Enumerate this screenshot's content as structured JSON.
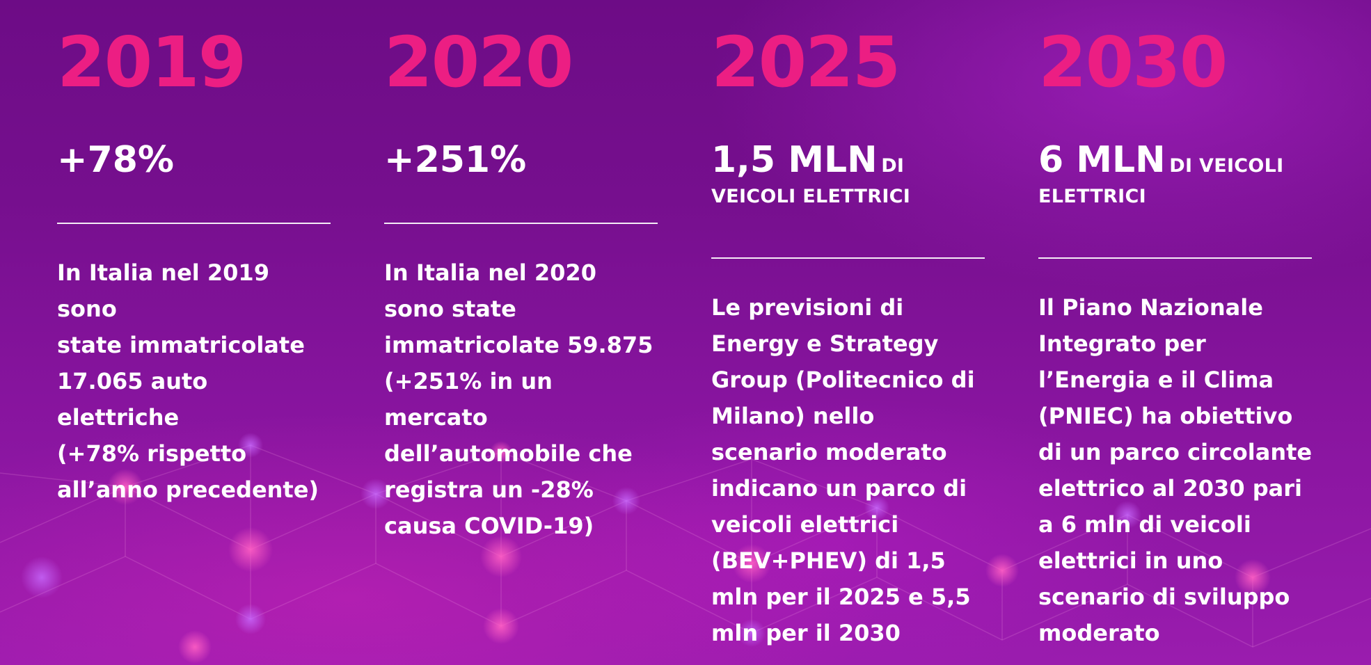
{
  "columns": [
    {
      "year": "2019",
      "headline_big": "+78%",
      "headline_small": "",
      "description": "In Italia nel 2019 sono\nstate immatricolate\n17.065 auto elettriche\n(+78% rispetto\nall’anno precedente)"
    },
    {
      "year": "2020",
      "headline_big": "+251%",
      "headline_small": "",
      "description": "In Italia nel 2020\nsono state\nimmatricolate 59.875\n(+251% in un mercato\ndell’automobile che\nregistra un -28%\ncausa COVID-19)"
    },
    {
      "year": "2025",
      "headline_big": "1,5 MLN",
      "headline_small": "DI\nVEICOLI ELETTRICI",
      "description": "Le previsioni di\nEnergy e Strategy\nGroup (Politecnico di\nMilano) nello\nscenario moderato\nindicano un parco di\nveicoli elettrici\n(BEV+PHEV) di 1,5\nmln per il 2025 e 5,5\nmln per il 2030"
    },
    {
      "year": "2030",
      "headline_big": "6 MLN",
      "headline_small": "DI VEICOLI\nELETTRICI",
      "description": "Il Piano Nazionale\nIntegrato per\nl’Energia e il Clima\n(PNIEC) ha obiettivo\ndi un parco circolante\nelettrico al 2030 pari\na 6 mln di veicoli\nelettrici in uno\nscenario di sviluppo\nmoderato"
    }
  ],
  "colors": {
    "year": "#ec1e83",
    "text": "#ffffff",
    "background_top": "#6d0c86",
    "background_bottom": "#9a1cae"
  }
}
